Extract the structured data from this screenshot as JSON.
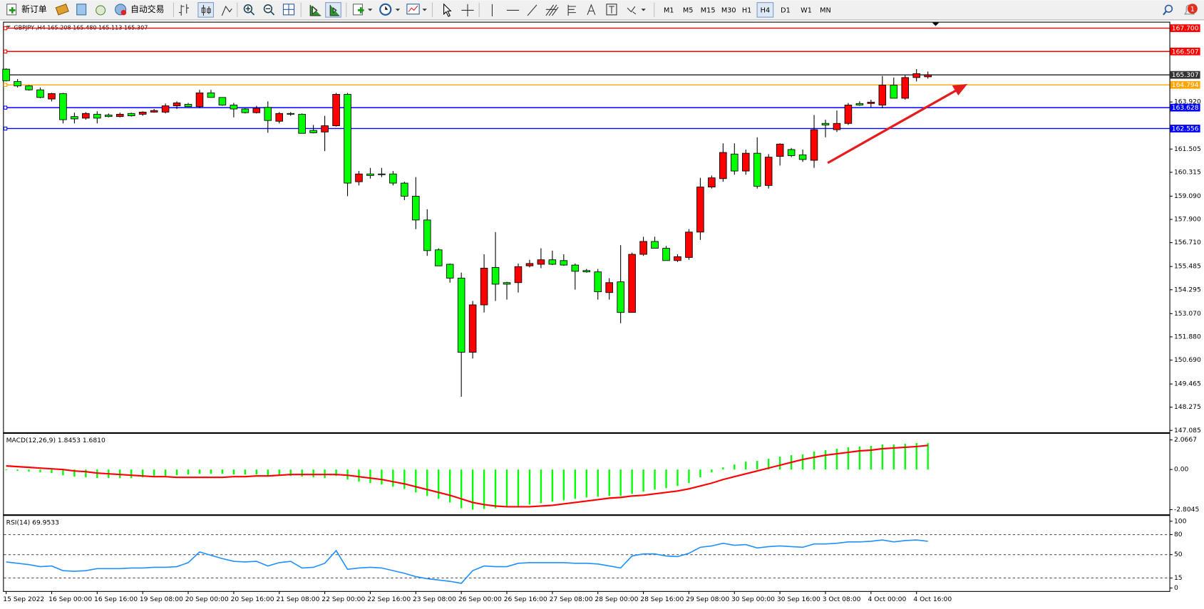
{
  "toolbar": {
    "new_order": "新订单",
    "auto_trade": "自动交易",
    "timeframes": [
      "M1",
      "M5",
      "M15",
      "M30",
      "H1",
      "H4",
      "D1",
      "W1",
      "MN"
    ],
    "active_timeframe": "H4",
    "notifications": 1
  },
  "chart_data": [
    {
      "type": "candlestick",
      "title": "GBPJPY-,H4  165.208 165.480 165.113 165.307",
      "up_color": "#ff0000",
      "down_color": "#00ff00",
      "categories": [
        "15 Sep 2022",
        null,
        null,
        null,
        "16 Sep 00:00",
        null,
        null,
        null,
        "16 Sep 16:00",
        null,
        null,
        null,
        "19 Sep 08:00",
        null,
        null,
        null,
        "20 Sep 00:00",
        null,
        null,
        null,
        "20 Sep 16:00",
        null,
        null,
        null,
        "21 Sep 08:00",
        null,
        null,
        null,
        "22 Sep 00:00",
        null,
        null,
        null,
        "22 Sep 16:00",
        null,
        null,
        null,
        "23 Sep 08:00",
        null,
        null,
        null,
        "26 Sep 00:00",
        null,
        null,
        null,
        "26 Sep 16:00",
        null,
        null,
        null,
        "27 Sep 08:00",
        null,
        null,
        null,
        "28 Sep 00:00",
        null,
        null,
        null,
        "28 Sep 16:00",
        null,
        null,
        null,
        "29 Sep 08:00",
        null,
        null,
        null,
        "30 Sep 00:00",
        null,
        null,
        null,
        "30 Sep 16:00",
        null,
        null,
        null,
        "3 Oct 08:00",
        null,
        null,
        null,
        "4 Oct 00:00",
        null,
        null,
        null,
        "4 Oct 16:00",
        null
      ],
      "open": [
        165.6,
        164.97,
        164.74,
        164.54,
        164.07,
        164.35,
        163.17,
        163.09,
        163.29,
        163.25,
        163.17,
        163.33,
        163.29,
        163.4,
        163.4,
        163.72,
        163.8,
        163.68,
        164.385,
        164.15,
        163.76,
        163.56,
        163.37,
        163.64,
        162.93,
        163.33,
        163.29,
        162.46,
        162.38,
        162.7,
        164.31,
        159.83,
        160.23,
        160.23,
        160.23,
        159.76,
        159.09,
        157.87,
        156.34,
        155.6,
        154.89,
        151.09,
        153.52,
        155.44,
        154.66,
        154.66,
        155.52,
        155.6,
        155.83,
        155.79,
        155.56,
        155.28,
        155.21,
        154.15,
        154.7,
        153.13,
        156.11,
        156.77,
        156.42,
        155.79,
        155.95,
        157.25,
        159.56,
        159.99,
        161.25,
        160.38,
        161.29,
        159.64,
        161.13,
        161.48,
        161.21,
        160.93,
        162.82,
        162.5,
        162.82,
        163.84,
        163.84,
        163.76,
        164.78,
        164.11,
        165.17,
        165.208
      ],
      "high": [
        165.64,
        165.09,
        164.78,
        164.66,
        164.385,
        164.385,
        163.37,
        163.4,
        163.44,
        163.33,
        163.37,
        163.37,
        163.44,
        163.56,
        163.84,
        163.95,
        163.87,
        164.54,
        164.54,
        164.15,
        163.87,
        163.6,
        163.72,
        163.95,
        163.4,
        163.4,
        163.33,
        162.74,
        163.21,
        164.385,
        164.385,
        160.38,
        160.54,
        160.54,
        160.38,
        159.83,
        160.07,
        158.42,
        156.42,
        155.64,
        155.17,
        153.72,
        156.11,
        157.25,
        154.7,
        155.64,
        155.83,
        156.42,
        156.3,
        156.11,
        155.64,
        155.36,
        155.36,
        154.89,
        156.58,
        156.2,
        157.01,
        157.01,
        156.54,
        156.11,
        157.4,
        160.03,
        160.15,
        161.8,
        161.8,
        161.48,
        162.11,
        161.25,
        161.8,
        161.56,
        161.48,
        163.25,
        163.01,
        163.48,
        163.87,
        163.95,
        164.03,
        165.25,
        165.17,
        165.29,
        165.6,
        165.48
      ],
      "low": [
        164.97,
        164.66,
        164.5,
        164.11,
        163.95,
        162.82,
        162.82,
        163.01,
        162.82,
        163.13,
        163.13,
        163.17,
        163.21,
        163.37,
        163.33,
        163.56,
        163.68,
        163.6,
        164.15,
        163.72,
        163.13,
        163.33,
        163.33,
        162.34,
        162.82,
        163.21,
        162.31,
        162.31,
        161.4,
        162.66,
        159.09,
        159.64,
        159.99,
        160.07,
        159.64,
        158.89,
        157.4,
        156.03,
        155.52,
        154.66,
        148.81,
        150.77,
        153.13,
        153.72,
        153.79,
        154.15,
        155.44,
        155.4,
        155.56,
        155.52,
        154.3,
        155.17,
        153.79,
        153.79,
        152.58,
        153.13,
        156.03,
        156.42,
        155.79,
        155.72,
        155.83,
        156.85,
        159.48,
        159.83,
        160.19,
        160.19,
        159.48,
        159.48,
        160.66,
        161.09,
        160.85,
        160.54,
        162.11,
        162.38,
        162.74,
        163.72,
        163.64,
        163.6,
        164.11,
        164.03,
        164.97,
        165.113
      ],
      "close": [
        165.01,
        164.74,
        164.54,
        164.15,
        164.35,
        163.01,
        163.05,
        163.33,
        163.09,
        163.17,
        163.29,
        163.21,
        163.4,
        163.48,
        163.72,
        163.87,
        163.68,
        164.385,
        164.15,
        163.76,
        163.56,
        163.37,
        163.6,
        162.97,
        163.33,
        163.29,
        162.31,
        162.34,
        162.7,
        164.31,
        159.76,
        160.23,
        160.15,
        160.19,
        159.76,
        159.09,
        157.87,
        156.3,
        155.52,
        154.89,
        151.09,
        153.52,
        155.4,
        154.58,
        154.58,
        155.48,
        155.64,
        155.83,
        155.6,
        155.56,
        155.24,
        155.21,
        154.19,
        154.66,
        153.13,
        156.11,
        156.77,
        156.42,
        155.79,
        155.99,
        157.25,
        159.56,
        160.03,
        161.33,
        160.38,
        161.29,
        159.6,
        161.09,
        161.76,
        161.17,
        160.97,
        162.5,
        162.74,
        162.82,
        163.76,
        163.76,
        163.91,
        164.78,
        164.11,
        165.17,
        165.37,
        165.307
      ],
      "ylim": [
        147.03,
        167.99
      ],
      "yticks": [
        {
          "value": 163.92,
          "label": "163.920"
        },
        161.505,
        160.315,
        {
          "value": 159.09,
          "label": "159.090"
        },
        {
          "value": 157.9,
          "label": "157.900"
        },
        {
          "value": 156.71,
          "label": "156.710"
        },
        155.485,
        154.295,
        {
          "value": 153.07,
          "label": "153.070"
        },
        {
          "value": 151.88,
          "label": "151.880"
        },
        {
          "value": 150.69,
          "label": "150.690"
        },
        149.465,
        148.275,
        147.085
      ],
      "levels": [
        {
          "value": 167.7,
          "label": "167.700",
          "color": "#ff0000"
        },
        {
          "value": 166.507,
          "label": "166.507",
          "color": "#ff0000"
        },
        {
          "value": 165.307,
          "label": "165.307",
          "color": "#333333"
        },
        {
          "value": 164.794,
          "label": "164.794",
          "color": "#ffa500"
        },
        {
          "value": 163.628,
          "label": "163.628",
          "color": "#0000ff"
        },
        {
          "value": 162.556,
          "label": "162.556",
          "color": "#0000ff"
        }
      ]
    },
    {
      "type": "macd",
      "title": "MACD(12,26,9) 1.8453 1.6810",
      "histogram": {
        "color": "#00ff00",
        "values": [
          -0.05,
          -0.1,
          -0.15,
          -0.2,
          -0.25,
          -0.4,
          -0.5,
          -0.55,
          -0.6,
          -0.6,
          -0.6,
          -0.6,
          -0.55,
          -0.5,
          -0.45,
          -0.4,
          -0.35,
          -0.3,
          -0.3,
          -0.3,
          -0.35,
          -0.35,
          -0.35,
          -0.45,
          -0.45,
          -0.45,
          -0.5,
          -0.55,
          -0.6,
          -0.45,
          -0.7,
          -0.85,
          -0.95,
          -1.05,
          -1.2,
          -1.35,
          -1.6,
          -1.85,
          -2.05,
          -2.3,
          -2.7,
          -2.8,
          -2.75,
          -2.7,
          -2.65,
          -2.55,
          -2.45,
          -2.35,
          -2.25,
          -2.15,
          -2.05,
          -1.95,
          -1.9,
          -1.85,
          -1.85,
          -1.7,
          -1.55,
          -1.4,
          -1.3,
          -1.15,
          -0.95,
          -0.55,
          -0.2,
          0.15,
          0.35,
          0.55,
          0.6,
          0.75,
          0.9,
          1.0,
          1.05,
          1.25,
          1.35,
          1.45,
          1.55,
          1.6,
          1.65,
          1.75,
          1.75,
          1.8,
          1.85,
          1.8453
        ]
      },
      "signal": {
        "color": "#ff0000",
        "values": [
          0.25,
          0.2,
          0.15,
          0.1,
          0.05,
          0.0,
          -0.1,
          -0.15,
          -0.25,
          -0.3,
          -0.35,
          -0.4,
          -0.45,
          -0.5,
          -0.5,
          -0.55,
          -0.55,
          -0.55,
          -0.55,
          -0.55,
          -0.5,
          -0.5,
          -0.45,
          -0.45,
          -0.4,
          -0.35,
          -0.35,
          -0.35,
          -0.35,
          -0.35,
          -0.4,
          -0.5,
          -0.6,
          -0.7,
          -0.85,
          -1.0,
          -1.2,
          -1.4,
          -1.6,
          -1.8,
          -2.05,
          -2.3,
          -2.45,
          -2.55,
          -2.6,
          -2.6,
          -2.6,
          -2.55,
          -2.5,
          -2.4,
          -2.3,
          -2.2,
          -2.1,
          -2.0,
          -1.95,
          -1.85,
          -1.8,
          -1.7,
          -1.6,
          -1.5,
          -1.35,
          -1.15,
          -0.95,
          -0.7,
          -0.5,
          -0.3,
          -0.1,
          0.1,
          0.3,
          0.5,
          0.7,
          0.85,
          1.0,
          1.1,
          1.2,
          1.3,
          1.35,
          1.45,
          1.5,
          1.55,
          1.6,
          1.681
        ]
      },
      "ylim": [
        -3.13,
        2.44
      ],
      "yticks": [
        2.0667,
        {
          "value": 0,
          "label": "0.00"
        },
        -2.8045
      ]
    },
    {
      "type": "line",
      "title": "RSI(14) 69.9533",
      "color": "#1e90ff",
      "values": [
        39,
        37,
        35,
        32,
        33,
        26,
        25,
        26,
        29,
        29,
        29,
        30,
        30,
        31,
        31,
        32,
        38,
        54,
        49,
        44,
        40,
        39,
        40,
        33,
        38,
        40,
        30,
        31,
        37,
        56,
        28,
        30,
        31,
        30,
        26,
        22,
        17,
        14,
        12,
        10,
        7,
        26,
        33,
        32,
        32,
        37,
        38,
        38,
        38,
        38,
        37,
        37,
        36,
        33,
        30,
        48,
        51,
        51,
        48,
        47,
        52,
        61,
        63,
        67,
        64,
        65,
        60,
        62,
        63,
        62,
        61,
        66,
        66,
        67,
        69,
        69,
        70,
        72,
        69,
        71,
        72,
        69.9533
      ],
      "ylim": [
        -4.6,
        106.9
      ],
      "yticks": [
        100,
        80,
        50,
        15,
        0
      ],
      "levels": [
        80,
        50,
        15
      ]
    }
  ]
}
